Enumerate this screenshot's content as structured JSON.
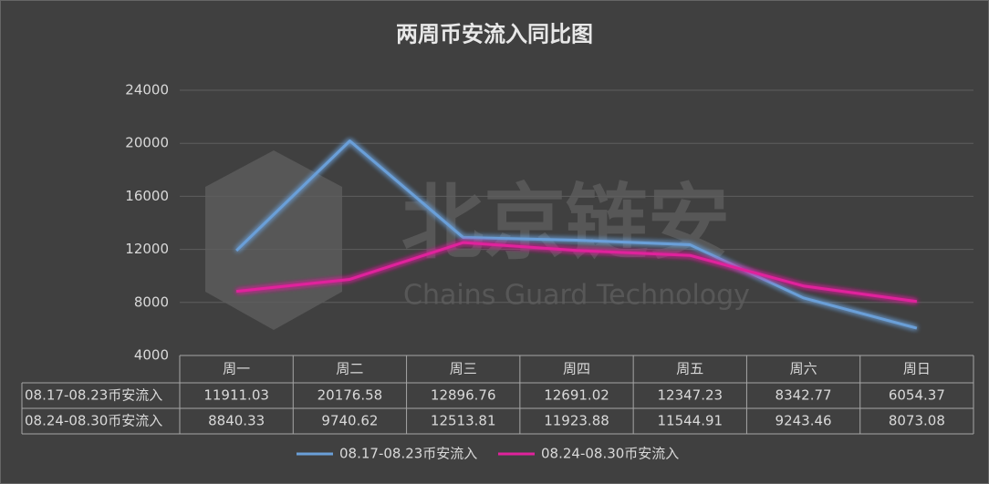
{
  "chart_data": {
    "type": "line",
    "title": "两周币安流入同比图",
    "watermark": "北京链安",
    "watermark_subtitle": "Chains Guard Technology",
    "categories": [
      "周一",
      "周二",
      "周三",
      "周四",
      "周五",
      "周六",
      "周日"
    ],
    "series": [
      {
        "name": "08.17-08.23币安流入",
        "color": "#6a9fd8",
        "values": [
          11911.03,
          20176.58,
          12896.76,
          12691.02,
          12347.23,
          8342.77,
          6054.37
        ]
      },
      {
        "name": "08.24-08.30币安流入",
        "color": "#e0229c",
        "values": [
          8840.33,
          9740.62,
          12513.81,
          11923.88,
          11544.91,
          9243.46,
          8073.08
        ]
      }
    ],
    "ylim": [
      4000,
      24000
    ],
    "yticks": [
      4000,
      8000,
      12000,
      16000,
      20000,
      24000
    ],
    "grid": true,
    "legend": "bottom"
  }
}
